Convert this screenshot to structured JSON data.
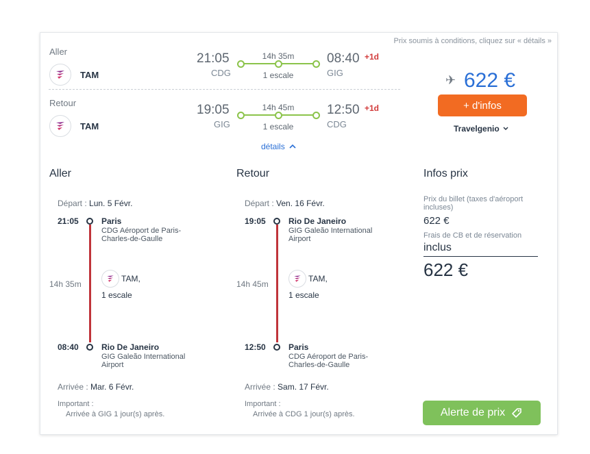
{
  "disclaimer": "Prix soumis à conditions, cliquez sur « détails »",
  "outbound": {
    "label": "Aller",
    "airline": "TAM",
    "dep_time": "21:05",
    "dep_code": "CDG",
    "duration": "14h 35m",
    "stops": "1 escale",
    "arr_time": "08:40",
    "arr_code": "GIG",
    "day_offset": "+1d"
  },
  "return": {
    "label": "Retour",
    "airline": "TAM",
    "dep_time": "19:05",
    "dep_code": "GIG",
    "duration": "14h 45m",
    "stops": "1 escale",
    "arr_time": "12:50",
    "arr_code": "CDG",
    "day_offset": "+1d"
  },
  "price": {
    "amount": "622 €",
    "infos_button": "+ d'infos",
    "agency": "Travelgenio",
    "plane_icon": "airplane-icon"
  },
  "details_link": "détails",
  "detail": {
    "outbound": {
      "title": "Aller",
      "depart_label": "Départ :",
      "depart_date": "Lun. 5 Févr.",
      "dep_time": "21:05",
      "dep_city": "Paris",
      "dep_airport": "CDG Aéroport de Paris-Charles-de-Gaulle",
      "duration": "14h 35m",
      "airline": "TAM,",
      "stops": "1 escale",
      "arr_time": "08:40",
      "arr_city": "Rio De Janeiro",
      "arr_airport": "GIG Galeão International Airport",
      "arrival_label": "Arrivée :",
      "arrival_date": "Mar. 6 Févr.",
      "important_label": "Important :",
      "important_text": "Arrivée à GIG 1 jour(s) après."
    },
    "return": {
      "title": "Retour",
      "depart_label": "Départ :",
      "depart_date": "Ven. 16 Févr.",
      "dep_time": "19:05",
      "dep_city": "Rio De Janeiro",
      "dep_airport": "GIG Galeão International Airport",
      "duration": "14h 45m",
      "airline": "TAM,",
      "stops": "1 escale",
      "arr_time": "12:50",
      "arr_city": "Paris",
      "arr_airport": "CDG Aéroport de Paris-Charles-de-Gaulle",
      "arrival_label": "Arrivée :",
      "arrival_date": "Sam. 17 Févr.",
      "important_label": "Important :",
      "important_text": "Arrivée à CDG 1 jour(s) après."
    }
  },
  "price_info": {
    "title": "Infos prix",
    "ticket_label": "Prix du billet (taxes d'aéroport incluses)",
    "ticket_value": "622 €",
    "fees_label": "Frais de CB et de réservation",
    "fees_value": "inclus",
    "total": "622 €",
    "alert_button": "Alerte de prix"
  },
  "colors": {
    "accent_blue": "#2a6fd6",
    "orange": "#f26b22",
    "green": "#7fc15b",
    "route_green": "#8bc34a",
    "timeline_red": "#c0343a",
    "day_offset_red": "#d23b3b"
  }
}
